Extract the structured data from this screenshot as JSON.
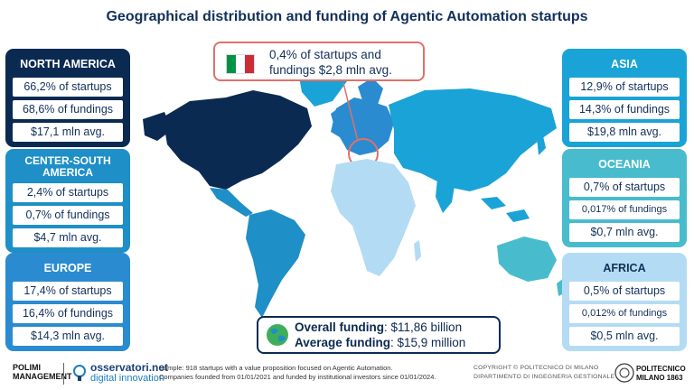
{
  "title": "Geographical distribution and funding of Agentic Automation startups",
  "regions": {
    "north_america": {
      "name": "NORTH AMERICA",
      "startups": "66,2% of startups",
      "fundings": "68,6% of fundings",
      "avg": "$17,1 mln avg.",
      "color": "#0b2a52"
    },
    "center_south_america": {
      "name": "CENTER-SOUTH AMERICA",
      "startups": "2,4% of startups",
      "fundings": "0,7% of fundings",
      "avg": "$4,7 mln avg.",
      "color": "#1e8fc7"
    },
    "europe": {
      "name": "EUROPE",
      "startups": "17,4% of startups",
      "fundings": "16,4% of fundings",
      "avg": "$14,3 mln avg.",
      "color": "#2b8bd0"
    },
    "asia": {
      "name": "ASIA",
      "startups": "12,9% of startups",
      "fundings": "14,3% of fundings",
      "avg": "$19,8 mln avg.",
      "color": "#1aa3d6"
    },
    "oceania": {
      "name": "OCEANIA",
      "startups": "0,7% of startups",
      "fundings": "0,017% of fundings",
      "avg": "$0,7 mln avg.",
      "color": "#48bccd"
    },
    "africa": {
      "name": "AFRICA",
      "startups": "0,5% of startups",
      "fundings": "0,012% of fundings",
      "avg": "$0,5 mln avg.",
      "color": "#b3dcf4"
    }
  },
  "italy_callout": {
    "line1": "0,4% of startups and",
    "line2": "fundings $2,8 mln avg.",
    "icon": "italy-flag-icon",
    "colors": [
      "#009246",
      "#ffffff",
      "#ce2b37"
    ]
  },
  "overall": {
    "funding_label": "Overall funding",
    "funding_value": ": $11,86 billion",
    "average_label": "Average funding",
    "average_value": ": $15,9 million",
    "icon": "globe-icon"
  },
  "footer": {
    "polimi_line1": "POLIMI",
    "polimi_line2": "MANAGEMENT",
    "osservatori_line1": "osservatori.net",
    "osservatori_line2": "digital innovation",
    "sample_line1": "Sample: 918 startups with a value proposition focused on Agentic Automation.",
    "sample_line2": "Companies founded from 01/01/2021 and funded by institutional investors since 01/01/2024.",
    "copyright_line1": "COPYRIGHT © POLITECNICO DI MILANO",
    "copyright_line2": "DIPARTIMENTO DI INGEGNERIA GESTIONALE",
    "politecnico_line1": "POLITECNICO",
    "politecnico_line2": "MILANO 1863"
  }
}
